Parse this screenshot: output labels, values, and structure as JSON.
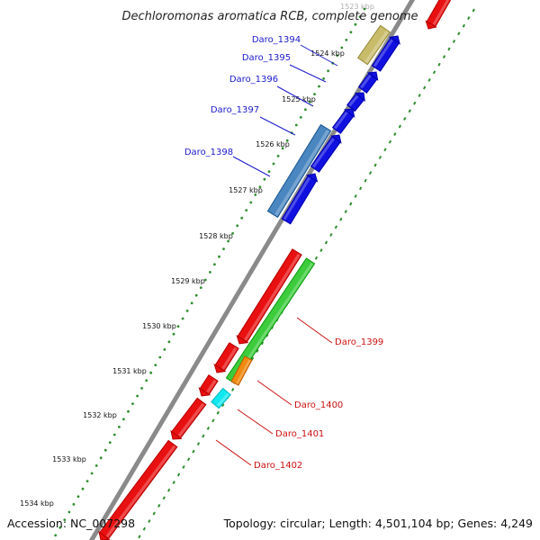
{
  "title": "Dechloromonas aromatica RCB, complete genome",
  "footer": {
    "accession": "Accession: NC_007298",
    "summary": "Topology: circular; Length: 4,501,104 bp; Genes: 4,249"
  },
  "colors": {
    "backbone": "#8a8a8a",
    "tick_dots": "#2f8f2f",
    "forward_gene": "#1010e0",
    "reverse_gene": "#e81010",
    "label_blue": "#1a1acc",
    "label_red": "#cc1010",
    "highlight_steelblue": "#4a86c0",
    "khaki": "#c8bb6a",
    "green_gene": "#3ccc3c",
    "orange_gene": "#f08a10",
    "cyan_gene": "#10e8f0"
  },
  "ticks": [
    "1523 kbp",
    "1524 kbp",
    "1525 kbp",
    "1526 kbp",
    "1527 kbp",
    "1528 kbp",
    "1529 kbp",
    "1530 kbp",
    "1531 kbp",
    "1532 kbp",
    "1533 kbp",
    "1534 kbp"
  ],
  "gene_labels": [
    {
      "text": "Daro_1394",
      "color": "blue"
    },
    {
      "text": "Daro_1395",
      "color": "blue"
    },
    {
      "text": "Daro_1396",
      "color": "blue"
    },
    {
      "text": "Daro_1397",
      "color": "blue"
    },
    {
      "text": "Daro_1398",
      "color": "blue"
    },
    {
      "text": "Daro_1399",
      "color": "red"
    },
    {
      "text": "Daro_1400",
      "color": "red"
    },
    {
      "text": "Daro_1401",
      "color": "red"
    },
    {
      "text": "Daro_1402",
      "color": "red"
    }
  ]
}
